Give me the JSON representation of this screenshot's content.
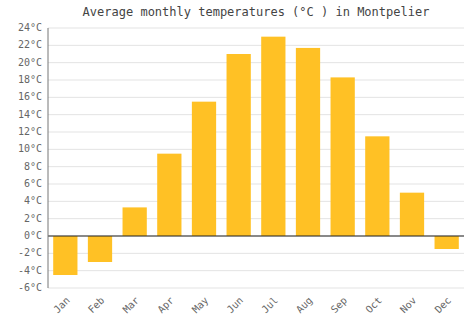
{
  "chart_data": {
    "type": "bar",
    "title": "Average monthly temperatures (°C ) in Montpelier",
    "categories": [
      "Jan",
      "Feb",
      "Mar",
      "Apr",
      "May",
      "Jun",
      "Jul",
      "Aug",
      "Sep",
      "Oct",
      "Nov",
      "Dec"
    ],
    "values": [
      -4.5,
      -3.0,
      3.3,
      9.5,
      15.5,
      21.0,
      23.0,
      21.7,
      18.3,
      11.5,
      5.0,
      -1.5
    ],
    "color": "#FFC125",
    "ylim": [
      -6,
      24
    ],
    "yticks": [
      {
        "value": -6,
        "label": "-6°C"
      },
      {
        "value": -4,
        "label": "-4°C"
      },
      {
        "value": -2,
        "label": "-2°C"
      },
      {
        "value": 0,
        "label": "0°C"
      },
      {
        "value": 2,
        "label": "2°C"
      },
      {
        "value": 4,
        "label": "4°C"
      },
      {
        "value": 6,
        "label": "6°C"
      },
      {
        "value": 8,
        "label": "8°C"
      },
      {
        "value": 10,
        "label": "10°C"
      },
      {
        "value": 12,
        "label": "12°C"
      },
      {
        "value": 14,
        "label": "14°C"
      },
      {
        "value": 16,
        "label": "16°C"
      },
      {
        "value": 18,
        "label": "18°C"
      },
      {
        "value": 20,
        "label": "20°C"
      },
      {
        "value": 22,
        "label": "22°C"
      },
      {
        "value": 24,
        "label": "24°C"
      }
    ],
    "grid": true
  }
}
